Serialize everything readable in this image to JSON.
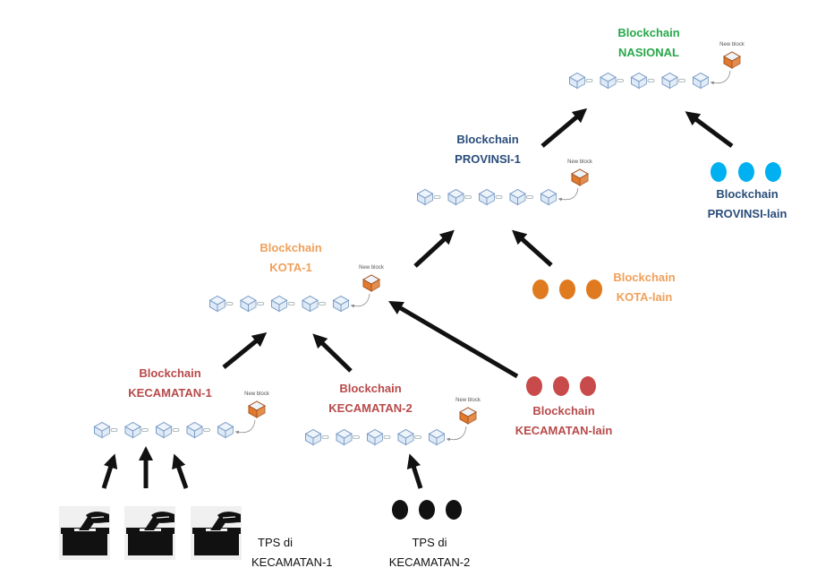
{
  "colors": {
    "nasional": "#27a84a",
    "provinsi": "#2a4d7a",
    "kota": "#f0a05a",
    "kota_lain": "#e07a1f",
    "kecamatan": "#b84a4a",
    "kecamatan_dots": "#c84a4a",
    "provinsi_dots": "#00b0f0",
    "black": "#111111",
    "block_fill": "#dde9f6",
    "block_stroke": "#7a9cc6",
    "new_block_fill": "#e07a2e"
  },
  "chains": {
    "nasional": {
      "line1": "Blockchain",
      "line2": "NASIONAL",
      "new_block": "New block"
    },
    "provinsi1": {
      "line1": "Blockchain",
      "line2": "PROVINSI-1",
      "new_block": "New block"
    },
    "kota1": {
      "line1": "Blockchain",
      "line2": "KOTA-1",
      "new_block": "New block"
    },
    "kecamatan1": {
      "line1": "Blockchain",
      "line2": "KECAMATAN-1",
      "new_block": "New block"
    },
    "kecamatan2": {
      "line1": "Blockchain",
      "line2": "KECAMATAN-2",
      "new_block": "New block"
    }
  },
  "others": {
    "provinsi_lain": {
      "line1": "Blockchain",
      "line2": "PROVINSI-lain"
    },
    "kota_lain": {
      "line1": "Blockchain",
      "line2": "KOTA-lain"
    },
    "kecamatan_lain": {
      "line1": "Blockchain",
      "line2": "KECAMATAN-lain"
    }
  },
  "tps": {
    "kec1": {
      "line1": "TPS di",
      "line2": "KECAMATAN-1"
    },
    "kec2": {
      "line1": "TPS di",
      "line2": "KECAMATAN-2"
    }
  },
  "icons": {
    "block": "cube-icon",
    "new_block": "cube-icon",
    "ballot": "ballot-box-icon",
    "arrow": "arrow-icon"
  }
}
